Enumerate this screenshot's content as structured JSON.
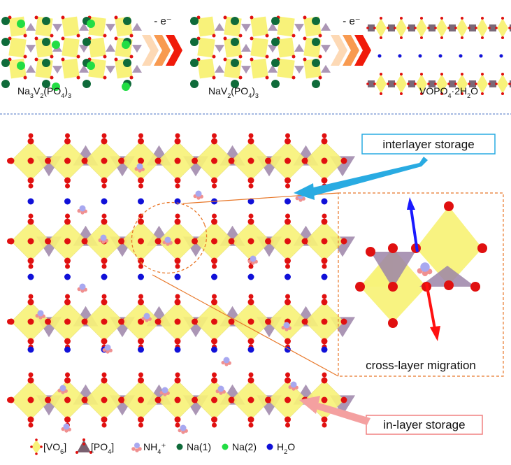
{
  "top": {
    "structures": [
      {
        "formula_parts": [
          "Na",
          "3",
          "V",
          "2",
          "(PO",
          "4",
          ")",
          "3"
        ]
      },
      {
        "formula_parts": [
          "NaV",
          "2",
          "(PO",
          "4",
          ")",
          "3"
        ]
      },
      {
        "formula_parts": [
          "VOPO",
          "4",
          "·2H",
          "2",
          "O"
        ]
      }
    ],
    "arrow_label_1": "- e⁻",
    "arrow_label_2": "- e⁻"
  },
  "main": {
    "interlayer_label": "interlayer storage",
    "inlayer_label": "in-layer storage",
    "inset_label": "cross-layer migration"
  },
  "legend": [
    {
      "label": "[VO",
      "sub": "6",
      "end": "]",
      "icon": "vo6-octahedron-icon"
    },
    {
      "label": "[PO",
      "sub": "4",
      "end": "]",
      "icon": "po4-tetrahedron-icon"
    },
    {
      "label": "NH",
      "sub": "4",
      "end": "⁺",
      "icon": "ammonium-icon"
    },
    {
      "label": "Na(1)",
      "sub": "",
      "end": "",
      "icon": "na1-atom-icon"
    },
    {
      "label": "Na(2)",
      "sub": "",
      "end": "",
      "icon": "na2-atom-icon"
    },
    {
      "label": "H",
      "sub": "2",
      "end": "O",
      "icon": "water-atom-icon"
    }
  ],
  "colors": {
    "vo6": "#f8f27a",
    "po4": "#9c84a8",
    "oxygen": "#e01010",
    "nh4_n": "#a8a8f0",
    "nh4_h": "#f09090",
    "na1": "#0f6b3a",
    "na2": "#22dd44",
    "h2o": "#1010d8",
    "interlayer_border": "#29abe2",
    "inlayer_border": "#f08080",
    "inset_border": "#e8782a",
    "divider": "#6f8fd0"
  }
}
